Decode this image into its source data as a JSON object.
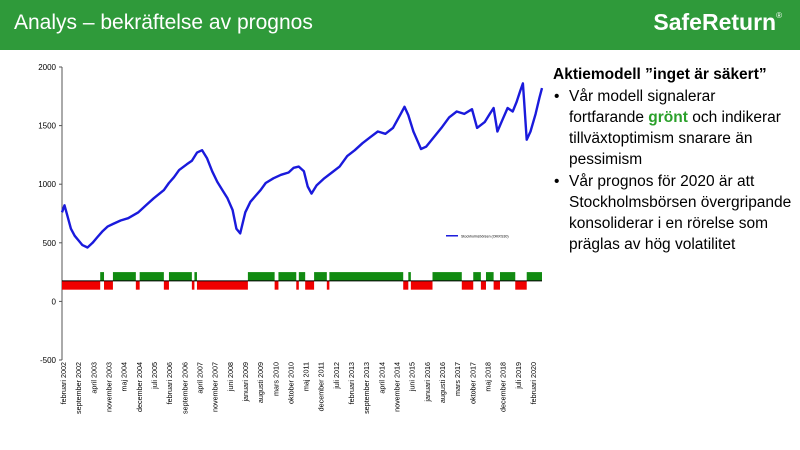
{
  "header": {
    "title": "Analys – bekräftelse av prognos",
    "brand": "SafeReturn",
    "brand_mark": "®",
    "background_color": "#2f9a3a"
  },
  "panel": {
    "title": "Aktiemodell ”inget är säkert”",
    "bullet1": {
      "before": "Vår modell signalerar fortfarande ",
      "highlight": "grönt",
      "after": " och indikerar tillväxtoptimism snarare än pessimism"
    },
    "bullet2": "Vår prognos för 2020 är att Stockholmsbörsen övergripande konsoliderar i en rörelse som präglas av hög volatilitet"
  },
  "chart_data": {
    "type": "line",
    "y_ticks": [
      "2000",
      "1500",
      "1000",
      "500",
      "0",
      "-500"
    ],
    "ylim": [
      -500,
      2000
    ],
    "legend": {
      "label": "Stockholmsbörsen (OMXS30)",
      "placement": "right"
    },
    "x_tick_labels": [
      "februari 2002",
      "september 2002",
      "april 2003",
      "november 2003",
      "maj 2004",
      "december 2004",
      "juli 2005",
      "februari 2006",
      "september 2006",
      "april 2007",
      "november 2007",
      "juni 2008",
      "januari 2009",
      "augusti 2009",
      "mars 2010",
      "oktober 2010",
      "maj 2011",
      "december 2011",
      "juli 2012",
      "februari 2013",
      "september 2013",
      "april 2014",
      "november 2014",
      "juni 2015",
      "januari 2016",
      "augusti 2016",
      "mars 2017",
      "oktober 2017",
      "maj 2018",
      "december 2018",
      "juli 2019",
      "februari 2020"
    ],
    "series": [
      {
        "color": "#1a1adc",
        "x": [
          2002.0,
          2002.1,
          2002.2,
          2002.35,
          2002.5,
          2002.65,
          2002.8,
          2003.0,
          2003.2,
          2003.4,
          2003.6,
          2003.8,
          2004.0,
          2004.3,
          2004.6,
          2005.0,
          2005.3,
          2005.6,
          2006.0,
          2006.2,
          2006.4,
          2006.6,
          2006.9,
          2007.1,
          2007.3,
          2007.5,
          2007.7,
          2007.9,
          2008.1,
          2008.3,
          2008.5,
          2008.7,
          2008.85,
          2009.0,
          2009.2,
          2009.4,
          2009.6,
          2009.8,
          2010.0,
          2010.3,
          2010.6,
          2010.9,
          2011.1,
          2011.3,
          2011.5,
          2011.65,
          2011.8,
          2012.0,
          2012.3,
          2012.6,
          2012.9,
          2013.2,
          2013.5,
          2013.8,
          2014.1,
          2014.4,
          2014.7,
          2015.0,
          2015.3,
          2015.45,
          2015.6,
          2015.8,
          2016.0,
          2016.1,
          2016.3,
          2016.6,
          2016.9,
          2017.2,
          2017.5,
          2017.8,
          2018.1,
          2018.3,
          2018.6,
          2018.8,
          2018.95,
          2019.1,
          2019.3,
          2019.5,
          2019.7,
          2019.85,
          2020.0,
          2020.1,
          2020.15,
          2020.25,
          2020.4,
          2020.6,
          2020.75,
          2020.85
        ],
        "y": [
          760,
          820,
          740,
          620,
          560,
          520,
          480,
          460,
          500,
          550,
          600,
          640,
          660,
          690,
          710,
          760,
          820,
          880,
          950,
          1010,
          1060,
          1120,
          1170,
          1200,
          1270,
          1290,
          1220,
          1110,
          1020,
          950,
          880,
          780,
          620,
          580,
          760,
          850,
          900,
          950,
          1010,
          1050,
          1080,
          1100,
          1140,
          1150,
          1110,
          980,
          920,
          990,
          1050,
          1100,
          1150,
          1240,
          1290,
          1350,
          1400,
          1450,
          1430,
          1480,
          1600,
          1660,
          1590,
          1450,
          1350,
          1300,
          1320,
          1400,
          1480,
          1570,
          1620,
          1600,
          1640,
          1480,
          1530,
          1600,
          1650,
          1450,
          1550,
          1650,
          1620,
          1700,
          1800,
          1860,
          1700,
          1380,
          1450,
          1600,
          1740,
          1820
        ]
      }
    ],
    "signal_bands": {
      "green_color": "#118a11",
      "red_color": "#f00000",
      "green_value": 250,
      "red_value": 100,
      "intervals": [
        [
          "red",
          2002.0,
          2003.5
        ],
        [
          "green",
          2003.5,
          2003.65
        ],
        [
          "red",
          2003.65,
          2004.0
        ],
        [
          "green",
          2004.0,
          2004.9
        ],
        [
          "red",
          2004.9,
          2005.05
        ],
        [
          "green",
          2005.05,
          2006.0
        ],
        [
          "red",
          2006.0,
          2006.2
        ],
        [
          "green",
          2006.2,
          2007.1
        ],
        [
          "red",
          2007.1,
          2007.2
        ],
        [
          "green",
          2007.2,
          2007.3
        ],
        [
          "red",
          2007.3,
          2009.3
        ],
        [
          "green",
          2009.3,
          2010.35
        ],
        [
          "red",
          2010.35,
          2010.5
        ],
        [
          "green",
          2010.5,
          2011.2
        ],
        [
          "red",
          2011.2,
          2011.3
        ],
        [
          "green",
          2011.3,
          2011.55
        ],
        [
          "red",
          2011.55,
          2011.9
        ],
        [
          "green",
          2011.9,
          2012.4
        ],
        [
          "red",
          2012.4,
          2012.5
        ],
        [
          "green",
          2012.5,
          2015.4
        ],
        [
          "red",
          2015.4,
          2015.6
        ],
        [
          "green",
          2015.6,
          2015.7
        ],
        [
          "red",
          2015.7,
          2016.55
        ],
        [
          "green",
          2016.55,
          2017.7
        ],
        [
          "red",
          2017.7,
          2018.15
        ],
        [
          "green",
          2018.15,
          2018.45
        ],
        [
          "red",
          2018.45,
          2018.65
        ],
        [
          "green",
          2018.65,
          2018.95
        ],
        [
          "red",
          2018.95,
          2019.2
        ],
        [
          "green",
          2019.2,
          2019.8
        ],
        [
          "red",
          2019.8,
          2020.25
        ],
        [
          "green",
          2020.25,
          2020.85
        ]
      ]
    }
  }
}
